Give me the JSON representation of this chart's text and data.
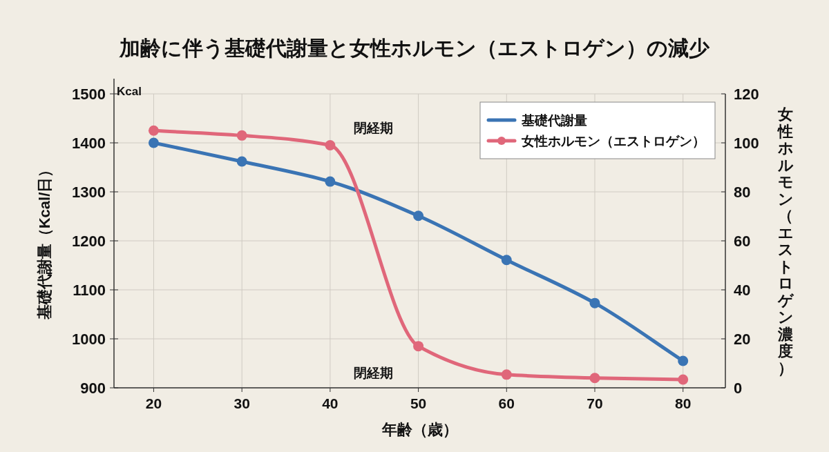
{
  "chart_data": {
    "type": "line",
    "title": "加齢に伴う基礎代謝量と女性ホルモン（エストロゲン）の減少",
    "xlabel": "年齢（歳）",
    "ylabel": "基礎代謝量（Kcal/日）",
    "y2label": "女性ホルモン（エストロゲン濃度）",
    "x": [
      20,
      30,
      40,
      50,
      60,
      70,
      80
    ],
    "series": [
      {
        "name": "基礎代謝量",
        "color": "#3a74b4",
        "values": [
          1400,
          1362,
          1321,
          1251,
          1161,
          1073,
          955
        ]
      },
      {
        "name": "女性ホルモン（エストロゲン）",
        "color": "#e0677a",
        "axis": "y2",
        "values": [
          105,
          103,
          99,
          17,
          5.4,
          4,
          3.4
        ]
      }
    ],
    "xlim": [
      15.5,
      84.8
    ],
    "xticks": [
      20,
      30,
      40,
      50,
      60,
      70,
      80
    ],
    "ylim": [
      900,
      1500
    ],
    "yticks": [
      900,
      1000,
      1100,
      1200,
      1300,
      1400,
      1500
    ],
    "y2lim": [
      0,
      120
    ],
    "y2ticks": [
      0,
      20,
      40,
      60,
      80,
      100,
      120
    ],
    "annotations": [
      "Kcal",
      "閉経期",
      "閉経期"
    ],
    "grid": true,
    "legend": "top right",
    "marker": "circle",
    "line_style": "solid"
  }
}
